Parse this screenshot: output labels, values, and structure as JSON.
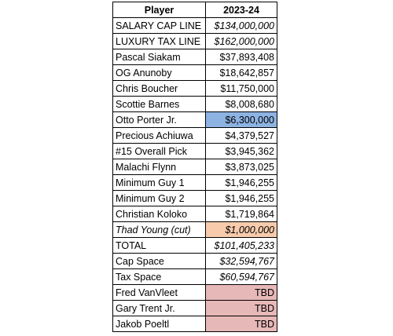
{
  "header": {
    "player": "Player",
    "season": "2023-24"
  },
  "rows": [
    [
      "SALARY CAP LINE",
      "$134,000,000"
    ],
    [
      "LUXURY TAX LINE",
      "$162,000,000"
    ],
    [
      "Pascal Siakam",
      "$37,893,408"
    ],
    [
      "OG Anunoby",
      "$18,642,857"
    ],
    [
      "Chris Boucher",
      "$11,750,000"
    ],
    [
      "Scottie Barnes",
      "$8,008,680"
    ],
    [
      "Otto Porter Jr.",
      "$6,300,000"
    ],
    [
      "Precious Achiuwa",
      "$4,379,527"
    ],
    [
      "#15 Overall Pick",
      "$3,945,362"
    ],
    [
      "Malachi Flynn",
      "$3,873,025"
    ],
    [
      "Minimum Guy 1",
      "$1,946,255"
    ],
    [
      "Minimum Guy 2",
      "$1,946,255"
    ],
    [
      "Christian Koloko",
      "$1,719,864"
    ],
    [
      "Thad Young (cut)",
      "$1,000,000"
    ],
    [
      "TOTAL",
      "$101,405,233"
    ],
    [
      "Cap Space",
      "$32,594,767"
    ],
    [
      "Tax Space",
      "$60,594,767"
    ],
    [
      "Fred VanVleet",
      "TBD"
    ],
    [
      "Gary Trent Jr.",
      "TBD"
    ],
    [
      "Jakob Poeltl",
      "TBD"
    ]
  ]
}
